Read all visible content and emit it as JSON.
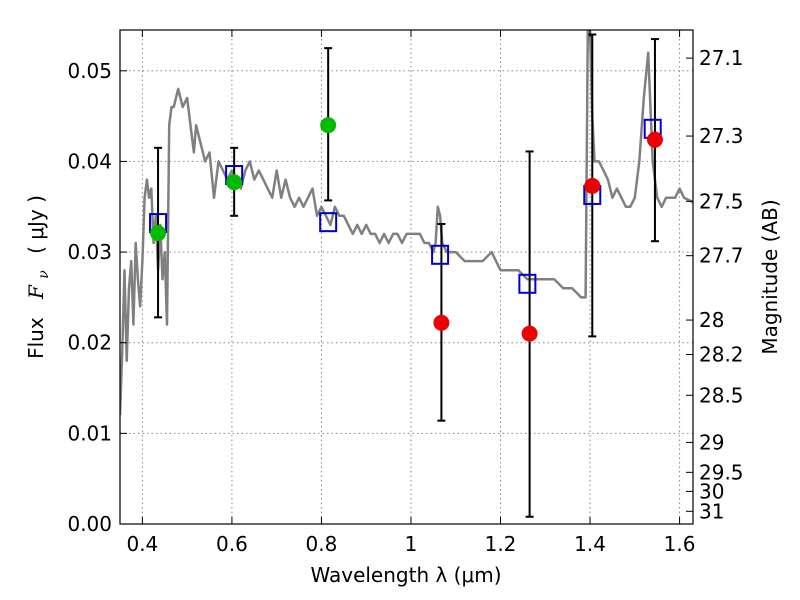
{
  "chart_data": {
    "type": "scatter",
    "xlabel": "Wavelength  λ (μm)",
    "ylabel": "Flux  F_ν  ( μJy )",
    "ylabel_parts": {
      "prefix": "Flux",
      "symbol": "F",
      "subscript": "ν",
      "units": "( μJy )"
    },
    "y2label": "Magnitude (AB)",
    "xlim": [
      0.35,
      1.63
    ],
    "ylim": [
      0.0,
      0.0545
    ],
    "grid": true,
    "x_ticks": [
      0.4,
      0.6,
      0.8,
      1.0,
      1.2,
      1.4,
      1.6
    ],
    "x_tick_labels": [
      "0.4",
      "0.6",
      "0.8",
      "1",
      "1.2",
      "1.4",
      "1.6"
    ],
    "y_ticks": [
      0.0,
      0.01,
      0.02,
      0.03,
      0.04,
      0.05
    ],
    "y_tick_labels": [
      "0.00",
      "0.01",
      "0.02",
      "0.03",
      "0.04",
      "0.05"
    ],
    "y2_ticks": [
      {
        "label": "27.1",
        "flux": 0.0514
      },
      {
        "label": "27.3",
        "flux": 0.0428
      },
      {
        "label": "27.5",
        "flux": 0.0356
      },
      {
        "label": "27.7",
        "flux": 0.0296
      },
      {
        "label": "28",
        "flux": 0.0225
      },
      {
        "label": "28.2",
        "flux": 0.0187
      },
      {
        "label": "28.5",
        "flux": 0.0142
      },
      {
        "label": "29",
        "flux": 0.009
      },
      {
        "label": "29.5",
        "flux": 0.0057
      },
      {
        "label": "30",
        "flux": 0.0036
      },
      {
        "label": "31",
        "flux": 0.0014
      }
    ],
    "colors": {
      "model": "#808080",
      "green": "#00bb00",
      "red": "#ee0000",
      "box": "#0000cc",
      "errorbar": "#000000",
      "grid": "#888888"
    },
    "model_spectrum": {
      "x": [
        0.35,
        0.355,
        0.36,
        0.365,
        0.37,
        0.375,
        0.38,
        0.385,
        0.39,
        0.395,
        0.4,
        0.405,
        0.41,
        0.415,
        0.42,
        0.425,
        0.43,
        0.435,
        0.44,
        0.445,
        0.45,
        0.455,
        0.46,
        0.465,
        0.47,
        0.48,
        0.49,
        0.5,
        0.51,
        0.515,
        0.52,
        0.53,
        0.54,
        0.55,
        0.56,
        0.57,
        0.58,
        0.59,
        0.6,
        0.61,
        0.62,
        0.63,
        0.64,
        0.65,
        0.66,
        0.67,
        0.68,
        0.69,
        0.7,
        0.71,
        0.72,
        0.73,
        0.74,
        0.75,
        0.76,
        0.77,
        0.78,
        0.79,
        0.8,
        0.81,
        0.82,
        0.83,
        0.84,
        0.85,
        0.86,
        0.87,
        0.88,
        0.89,
        0.9,
        0.91,
        0.92,
        0.93,
        0.94,
        0.95,
        0.96,
        0.97,
        0.98,
        0.99,
        1.0,
        1.01,
        1.02,
        1.03,
        1.04,
        1.05,
        1.055,
        1.06,
        1.065,
        1.07,
        1.08,
        1.1,
        1.12,
        1.14,
        1.16,
        1.18,
        1.2,
        1.22,
        1.24,
        1.26,
        1.28,
        1.3,
        1.32,
        1.34,
        1.36,
        1.38,
        1.39,
        1.395,
        1.4,
        1.405,
        1.41,
        1.42,
        1.43,
        1.44,
        1.45,
        1.46,
        1.47,
        1.48,
        1.49,
        1.5,
        1.51,
        1.52,
        1.53,
        1.54,
        1.55,
        1.56,
        1.57,
        1.58,
        1.59,
        1.6,
        1.61,
        1.63
      ],
      "y": [
        0.012,
        0.019,
        0.028,
        0.018,
        0.026,
        0.029,
        0.022,
        0.031,
        0.027,
        0.024,
        0.029,
        0.036,
        0.038,
        0.036,
        0.037,
        0.031,
        0.034,
        0.028,
        0.033,
        0.027,
        0.03,
        0.022,
        0.044,
        0.046,
        0.046,
        0.048,
        0.046,
        0.047,
        0.043,
        0.041,
        0.044,
        0.042,
        0.04,
        0.041,
        0.036,
        0.04,
        0.039,
        0.038,
        0.039,
        0.038,
        0.037,
        0.039,
        0.04,
        0.038,
        0.039,
        0.038,
        0.037,
        0.036,
        0.039,
        0.036,
        0.038,
        0.036,
        0.035,
        0.036,
        0.035,
        0.036,
        0.037,
        0.034,
        0.035,
        0.034,
        0.033,
        0.035,
        0.034,
        0.034,
        0.033,
        0.032,
        0.033,
        0.032,
        0.033,
        0.032,
        0.032,
        0.031,
        0.032,
        0.031,
        0.032,
        0.032,
        0.031,
        0.032,
        0.032,
        0.032,
        0.032,
        0.031,
        0.031,
        0.03,
        0.031,
        0.035,
        0.034,
        0.031,
        0.03,
        0.03,
        0.029,
        0.029,
        0.029,
        0.03,
        0.028,
        0.028,
        0.028,
        0.027,
        0.027,
        0.027,
        0.027,
        0.026,
        0.026,
        0.025,
        0.025,
        0.0545,
        0.0545,
        0.045,
        0.04,
        0.04,
        0.039,
        0.038,
        0.036,
        0.037,
        0.036,
        0.035,
        0.035,
        0.036,
        0.04,
        0.047,
        0.052,
        0.04,
        0.036,
        0.035,
        0.036,
        0.036,
        0.036,
        0.037,
        0.036,
        0.0355
      ]
    },
    "series": [
      {
        "marker": "open-square",
        "color": "#0000cc",
        "x": [
          0.435,
          0.605,
          0.815,
          1.065,
          1.26,
          1.405,
          1.54
        ],
        "y": [
          0.0332,
          0.0385,
          0.0333,
          0.0297,
          0.0265,
          0.0363,
          0.0436
        ]
      },
      {
        "marker": "filled-circle",
        "color": "#00bb00",
        "x": [
          0.435,
          0.605,
          0.815
        ],
        "y": [
          0.0321,
          0.0377,
          0.044
        ],
        "yerr_low": [
          0.0228,
          0.034,
          0.0357
        ],
        "yerr_high": [
          0.0415,
          0.0415,
          0.0525
        ]
      },
      {
        "marker": "filled-circle",
        "color": "#ee0000",
        "x": [
          1.068,
          1.265,
          1.405,
          1.545
        ],
        "y": [
          0.0222,
          0.021,
          0.0373,
          0.0424
        ],
        "yerr_low": [
          0.0114,
          0.0008,
          0.0207,
          0.0312
        ],
        "yerr_high": [
          0.0331,
          0.0411,
          0.054,
          0.0535
        ]
      }
    ]
  }
}
